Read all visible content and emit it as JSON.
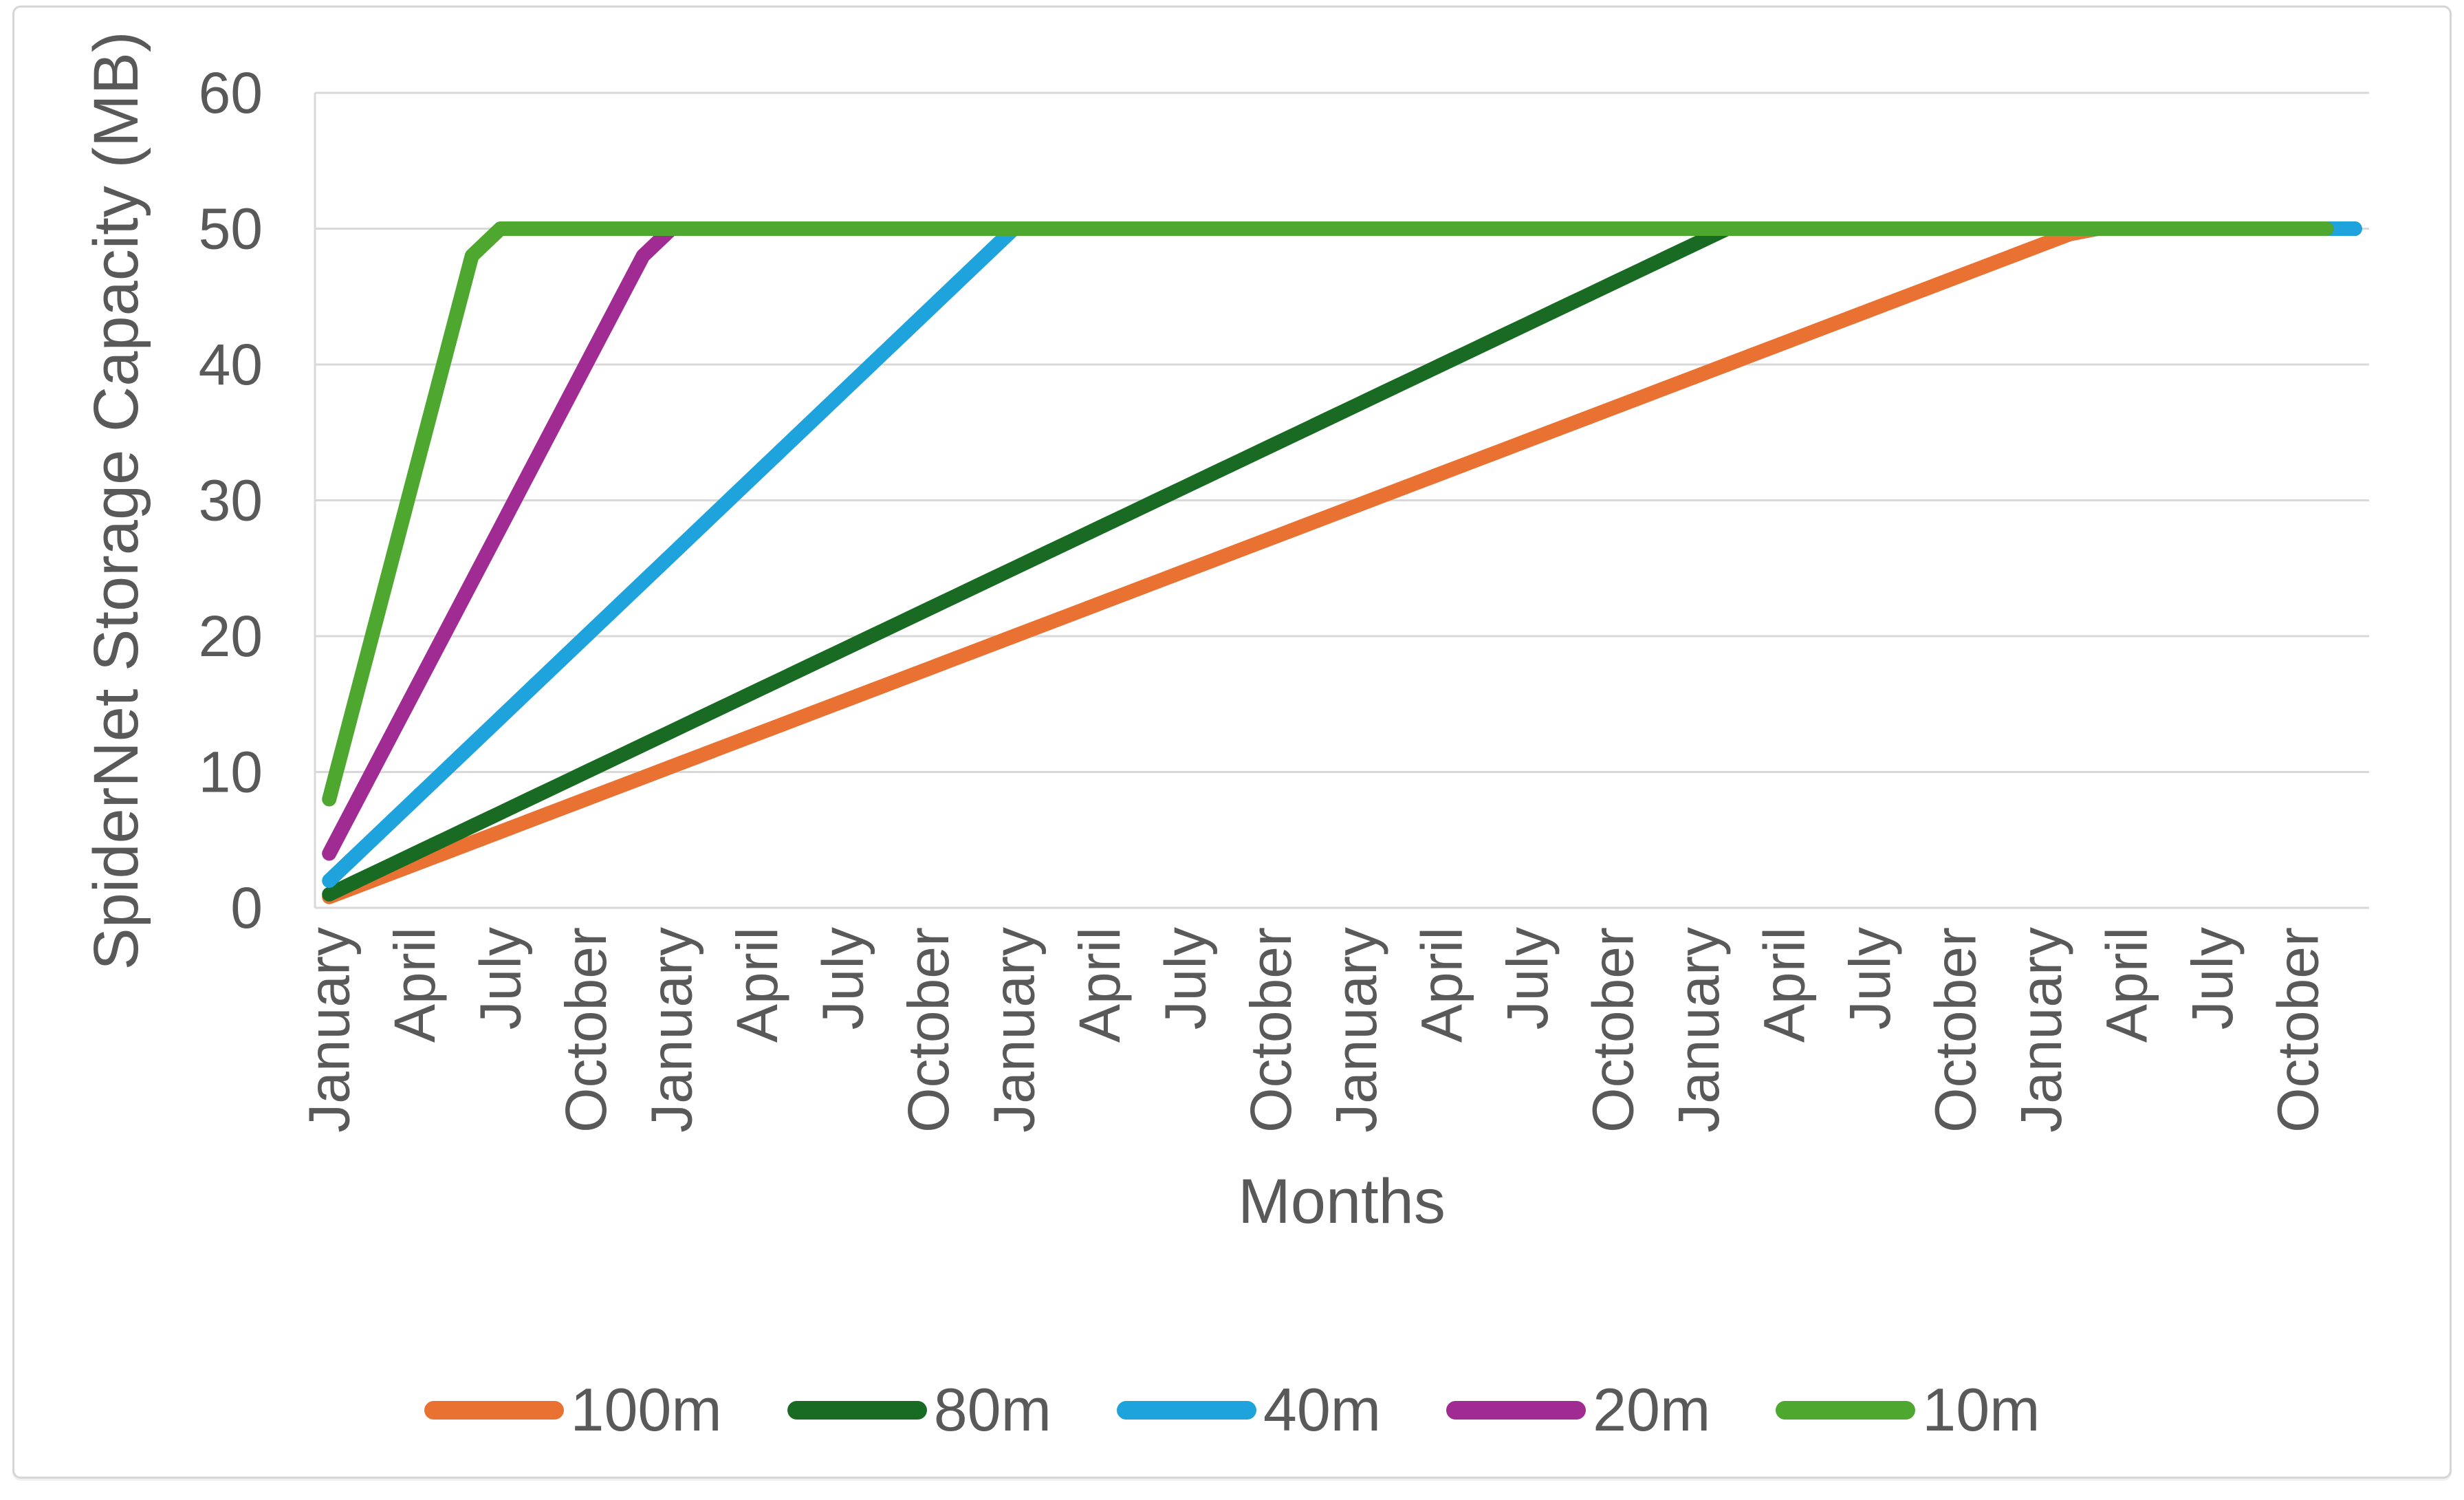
{
  "colors": {
    "text": "#595959",
    "grid": "#d9d9d9",
    "frame_border": "#d6d6d6",
    "background": "#ffffff"
  },
  "chart_data": {
    "type": "line",
    "title": "",
    "xlabel": "Months",
    "ylabel": "SpiderNet Storage Capacity (MB)",
    "ylim": [
      0,
      60
    ],
    "yticks": [
      0,
      10,
      20,
      30,
      40,
      50,
      60
    ],
    "n_months": 72,
    "xtick_every": 3,
    "xtick_labels": [
      "January",
      "April",
      "July",
      "October",
      "January",
      "April",
      "July",
      "October",
      "January",
      "April",
      "July",
      "October",
      "January",
      "April",
      "July",
      "October",
      "January",
      "April",
      "July",
      "October",
      "January",
      "April",
      "July",
      "October"
    ],
    "grid": "horizontal",
    "legend_position": "bottom",
    "series": [
      {
        "name": "100m",
        "color": "#E97132",
        "rate_mb_per_month": 0.8,
        "cap_mb": 50,
        "values": [
          0.8,
          1.6,
          2.4,
          3.2,
          4,
          4.8,
          5.6,
          6.4,
          7.2,
          8,
          8.8,
          9.6,
          10.4,
          11.2,
          12,
          12.8,
          13.6,
          14.4,
          15.2,
          16,
          16.8,
          17.6,
          18.4,
          19.2,
          20,
          20.8,
          21.6,
          22.4,
          23.2,
          24,
          24.8,
          25.6,
          26.4,
          27.2,
          28,
          28.8,
          29.6,
          30.4,
          31.2,
          32,
          32.8,
          33.6,
          34.4,
          35.2,
          36,
          36.8,
          37.6,
          38.4,
          39.2,
          40,
          40.8,
          41.6,
          42.4,
          43.2,
          44,
          44.8,
          45.6,
          46.4,
          47.2,
          48,
          48.8,
          49.6,
          50,
          50,
          50,
          50,
          50,
          50,
          50,
          50,
          50,
          50
        ]
      },
      {
        "name": "80m",
        "color": "#196B24",
        "rate_mb_per_month": 1,
        "cap_mb": 50,
        "values": [
          1,
          2,
          3,
          4,
          5,
          6,
          7,
          8,
          9,
          10,
          11,
          12,
          13,
          14,
          15,
          16,
          17,
          18,
          19,
          20,
          21,
          22,
          23,
          24,
          25,
          26,
          27,
          28,
          29,
          30,
          31,
          32,
          33,
          34,
          35,
          36,
          37,
          38,
          39,
          40,
          41,
          42,
          43,
          44,
          45,
          46,
          47,
          48,
          49,
          50,
          50,
          50,
          50,
          50,
          50,
          50,
          50,
          50,
          50,
          50,
          50,
          50,
          50,
          50,
          50,
          50,
          50,
          50,
          50,
          50,
          50,
          50
        ]
      },
      {
        "name": "40m",
        "color": "#1FA3DC",
        "rate_mb_per_month": 2,
        "cap_mb": 50,
        "values": [
          2,
          4,
          6,
          8,
          10,
          12,
          14,
          16,
          18,
          20,
          22,
          24,
          26,
          28,
          30,
          32,
          34,
          36,
          38,
          40,
          42,
          44,
          46,
          48,
          50,
          50,
          50,
          50,
          50,
          50,
          50,
          50,
          50,
          50,
          50,
          50,
          50,
          50,
          50,
          50,
          50,
          50,
          50,
          50,
          50,
          50,
          50,
          50,
          50,
          50,
          50,
          50,
          50,
          50,
          50,
          50,
          50,
          50,
          50,
          50,
          50,
          50,
          50,
          50,
          50,
          50,
          50,
          50,
          50,
          50,
          50,
          50
        ]
      },
      {
        "name": "20m",
        "color": "#A02B93",
        "rate_mb_per_month": 4,
        "cap_mb": 50,
        "values": [
          4,
          8,
          12,
          16,
          20,
          24,
          28,
          32,
          36,
          40,
          44,
          48,
          50,
          50,
          50,
          50,
          50,
          50,
          50,
          50,
          50,
          50,
          50,
          50,
          50,
          50,
          50,
          50,
          50,
          50,
          50,
          50,
          50,
          50,
          50,
          50,
          50,
          50,
          50,
          50,
          50,
          50,
          50,
          50,
          50,
          50,
          50,
          50,
          50,
          50,
          50,
          50,
          50,
          50,
          50,
          50,
          50,
          50,
          50,
          50,
          50,
          50,
          50,
          50,
          50,
          50,
          50,
          50,
          50,
          50,
          50
        ]
      },
      {
        "name": "10m",
        "color": "#4EA72E",
        "rate_mb_per_month": 8,
        "cap_mb": 50,
        "values": [
          8,
          16,
          24,
          32,
          40,
          48,
          50,
          50,
          50,
          50,
          50,
          50,
          50,
          50,
          50,
          50,
          50,
          50,
          50,
          50,
          50,
          50,
          50,
          50,
          50,
          50,
          50,
          50,
          50,
          50,
          50,
          50,
          50,
          50,
          50,
          50,
          50,
          50,
          50,
          50,
          50,
          50,
          50,
          50,
          50,
          50,
          50,
          50,
          50,
          50,
          50,
          50,
          50,
          50,
          50,
          50,
          50,
          50,
          50,
          50,
          50,
          50,
          50,
          50,
          50,
          50,
          50,
          50,
          50,
          50,
          50
        ]
      }
    ]
  }
}
